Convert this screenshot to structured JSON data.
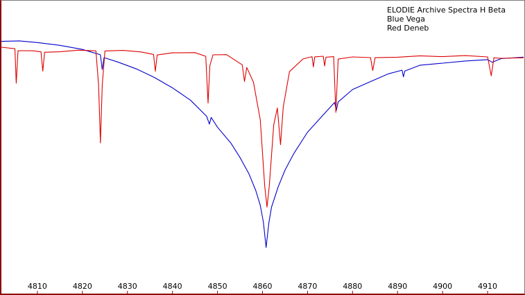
{
  "chart_data": {
    "type": "line",
    "title": "",
    "xlabel": "",
    "ylabel": "",
    "legend": {
      "placement": "top-right",
      "lines": [
        "ELODIE Archive Spectra H Beta",
        "Blue  Vega",
        "Red Deneb"
      ]
    },
    "xlim": [
      4802,
      4918
    ],
    "ylim": [
      0.0,
      1.1
    ],
    "x_ticks": [
      4810,
      4820,
      4830,
      4840,
      4850,
      4860,
      4870,
      4880,
      4890,
      4900,
      4910
    ],
    "grid": false,
    "series": [
      {
        "name": "Vega",
        "color": "#0000cc",
        "points": [
          [
            4802,
            1.0
          ],
          [
            4806,
            1.0
          ],
          [
            4810,
            0.99
          ],
          [
            4815,
            0.975
          ],
          [
            4820,
            0.955
          ],
          [
            4824,
            0.93
          ],
          [
            4824.4,
            0.86
          ],
          [
            4824.8,
            0.92
          ],
          [
            4828,
            0.9
          ],
          [
            4832,
            0.87
          ],
          [
            4836,
            0.83
          ],
          [
            4840,
            0.78
          ],
          [
            4844,
            0.72
          ],
          [
            4847.6,
            0.64
          ],
          [
            4848.2,
            0.6
          ],
          [
            4848.6,
            0.63
          ],
          [
            4850,
            0.58
          ],
          [
            4853,
            0.5
          ],
          [
            4855,
            0.43
          ],
          [
            4857,
            0.35
          ],
          [
            4858.5,
            0.27
          ],
          [
            4859.5,
            0.2
          ],
          [
            4860.2,
            0.12
          ],
          [
            4860.8,
            0.0
          ],
          [
            4861.4,
            0.12
          ],
          [
            4862,
            0.2
          ],
          [
            4863.5,
            0.3
          ],
          [
            4865,
            0.38
          ],
          [
            4867,
            0.46
          ],
          [
            4870,
            0.56
          ],
          [
            4873,
            0.63
          ],
          [
            4876,
            0.7
          ],
          [
            4876.4,
            0.66
          ],
          [
            4876.8,
            0.7
          ],
          [
            4880,
            0.76
          ],
          [
            4884,
            0.8
          ],
          [
            4888,
            0.84
          ],
          [
            4891,
            0.86
          ],
          [
            4891.3,
            0.83
          ],
          [
            4891.6,
            0.86
          ],
          [
            4895,
            0.89
          ],
          [
            4900,
            0.9
          ],
          [
            4905,
            0.91
          ],
          [
            4910,
            0.915
          ],
          [
            4911,
            0.9
          ],
          [
            4913,
            0.915
          ],
          [
            4918,
            0.92
          ]
        ]
      },
      {
        "name": "Deneb",
        "color": "#dd0000",
        "points": [
          [
            4802,
            0.97
          ],
          [
            4805,
            0.965
          ],
          [
            4805.3,
            0.8
          ],
          [
            4805.7,
            0.96
          ],
          [
            4809,
            0.96
          ],
          [
            4810.8,
            0.955
          ],
          [
            4811.2,
            0.86
          ],
          [
            4811.6,
            0.95
          ],
          [
            4815,
            0.95
          ],
          [
            4819,
            0.955
          ],
          [
            4823,
            0.95
          ],
          [
            4823.6,
            0.78
          ],
          [
            4824.0,
            0.5
          ],
          [
            4824.4,
            0.78
          ],
          [
            4825,
            0.95
          ],
          [
            4829,
            0.955
          ],
          [
            4833,
            0.95
          ],
          [
            4835.8,
            0.94
          ],
          [
            4836.2,
            0.86
          ],
          [
            4836.6,
            0.94
          ],
          [
            4840,
            0.95
          ],
          [
            4845,
            0.95
          ],
          [
            4847.4,
            0.93
          ],
          [
            4847.9,
            0.7
          ],
          [
            4848.3,
            0.88
          ],
          [
            4849,
            0.93
          ],
          [
            4852,
            0.93
          ],
          [
            4855.5,
            0.88
          ],
          [
            4856,
            0.8
          ],
          [
            4856.5,
            0.87
          ],
          [
            4858,
            0.8
          ],
          [
            4859.5,
            0.62
          ],
          [
            4860.5,
            0.3
          ],
          [
            4861,
            0.2
          ],
          [
            4861.5,
            0.3
          ],
          [
            4862.5,
            0.6
          ],
          [
            4863.3,
            0.68
          ],
          [
            4864.0,
            0.5
          ],
          [
            4864.6,
            0.68
          ],
          [
            4866,
            0.85
          ],
          [
            4869,
            0.91
          ],
          [
            4871,
            0.92
          ],
          [
            4871.3,
            0.87
          ],
          [
            4871.6,
            0.92
          ],
          [
            4873.5,
            0.925
          ],
          [
            4873.8,
            0.88
          ],
          [
            4874.1,
            0.925
          ],
          [
            4875.8,
            0.93
          ],
          [
            4876.3,
            0.66
          ],
          [
            4876.8,
            0.92
          ],
          [
            4880,
            0.93
          ],
          [
            4884,
            0.925
          ],
          [
            4884.5,
            0.86
          ],
          [
            4885,
            0.92
          ],
          [
            4890,
            0.92
          ],
          [
            4895,
            0.925
          ],
          [
            4900,
            0.92
          ],
          [
            4905,
            0.925
          ],
          [
            4910,
            0.92
          ],
          [
            4910.8,
            0.83
          ],
          [
            4911.4,
            0.92
          ],
          [
            4913,
            0.92
          ],
          [
            4918,
            0.925
          ]
        ]
      }
    ]
  }
}
